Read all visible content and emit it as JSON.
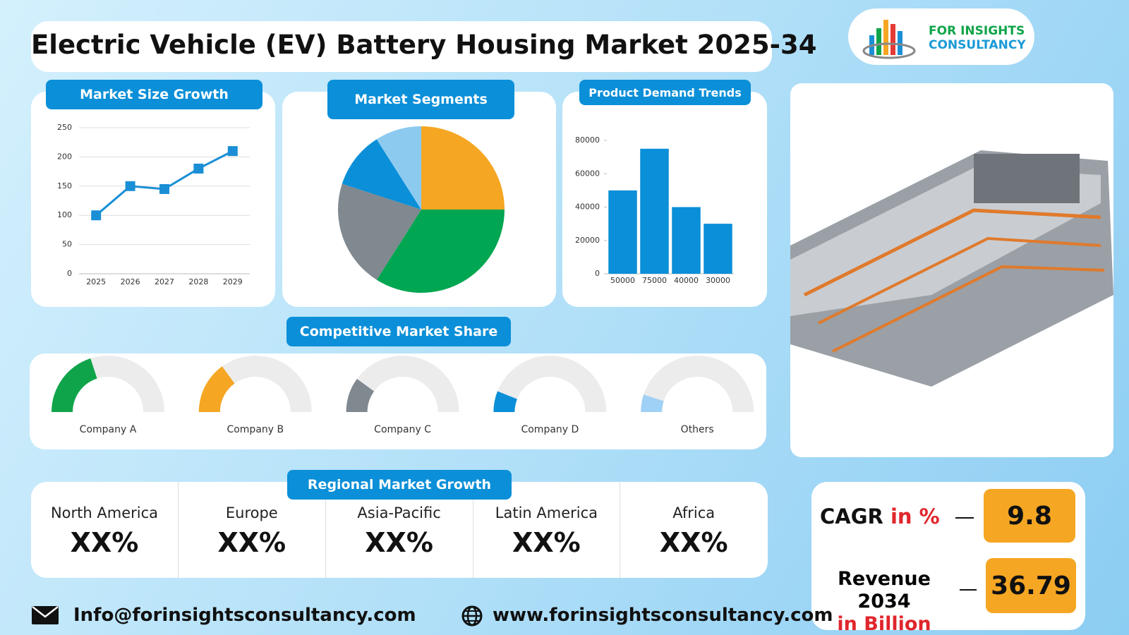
{
  "title": "Electric Vehicle (EV) Battery Housing Market 2025-34",
  "logo": {
    "line1": "FOR INSIGHTS",
    "line2": "CONSULTANCY"
  },
  "chart_data": [
    {
      "type": "line",
      "title": "Market Size Growth",
      "categories": [
        "2025",
        "2026",
        "2027",
        "2028",
        "2029"
      ],
      "values": [
        100,
        150,
        145,
        180,
        210
      ],
      "color": "#1a8fd6",
      "ylim": [
        0,
        250
      ],
      "yticks": [
        0,
        50,
        100,
        150,
        200,
        250
      ],
      "grid": true
    },
    {
      "type": "pie",
      "title": "Market Segments",
      "values": [
        25,
        34,
        21,
        11,
        9
      ],
      "colors": [
        "#f5a623",
        "#00a651",
        "#808890",
        "#0a8fd8",
        "#8ccaf0"
      ]
    },
    {
      "type": "bar",
      "title": "Product Demand Trends",
      "categories": [
        "50000",
        "75000",
        "40000",
        "30000"
      ],
      "values": [
        50000,
        75000,
        40000,
        30000
      ],
      "color": "#0a8fd8",
      "ylim": [
        0,
        80000
      ],
      "yticks": [
        0,
        20000,
        40000,
        60000,
        80000
      ],
      "grid": false
    },
    {
      "type": "gauge",
      "title": "Competitive Market Share",
      "categories": [
        "Company A",
        "Company B",
        "Company C",
        "Company D",
        "Others"
      ],
      "values": [
        40,
        30,
        20,
        12,
        10
      ],
      "ylim": [
        0,
        100
      ],
      "colors": [
        "#10a44a",
        "#f5a623",
        "#808890",
        "#0a8fd8",
        "#9fd0f5"
      ]
    }
  ],
  "regional": {
    "title": "Regional Market Growth",
    "regions": [
      {
        "name": "North America",
        "value": "XX%"
      },
      {
        "name": "Europe",
        "value": "XX%"
      },
      {
        "name": "Asia-Pacific",
        "value": "XX%"
      },
      {
        "name": "Latin America",
        "value": "XX%"
      },
      {
        "name": "Africa",
        "value": "XX%"
      }
    ]
  },
  "cagr": {
    "label": "CAGR",
    "unit": "in %",
    "value": 9.8
  },
  "revenue": {
    "label": "Revenue 2034",
    "unit": "in Billion",
    "value": 36.79
  },
  "contact": {
    "email": "Info@forinsightsconsultancy.com",
    "website": "www.forinsightsconsultancy.com"
  }
}
